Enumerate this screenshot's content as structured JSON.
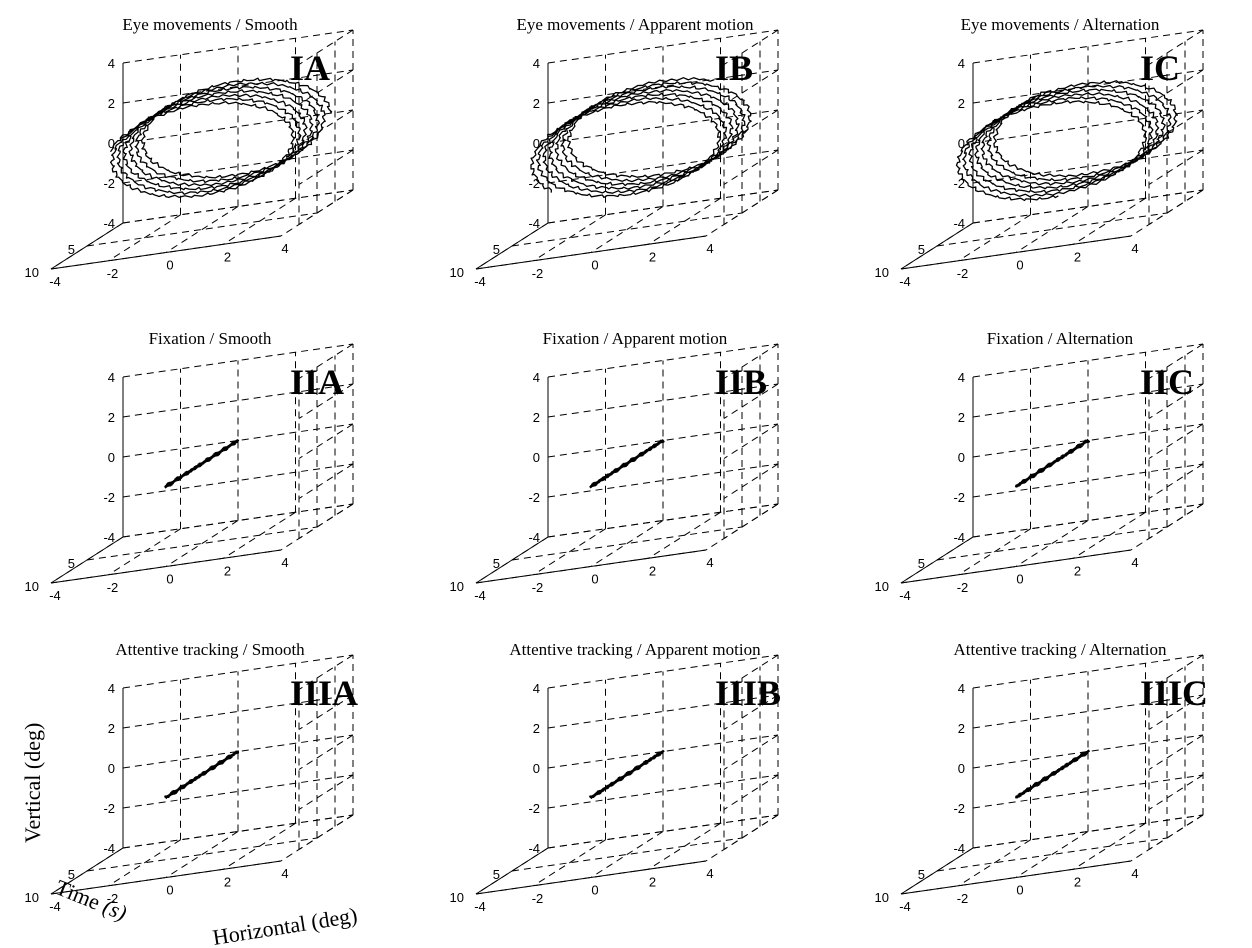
{
  "chart_data": [
    {
      "id": "IA",
      "type": "line3d",
      "title": "Eye movements / Smooth",
      "row": 0,
      "col": 0,
      "pattern": "loops",
      "xlim": [
        -4,
        4
      ],
      "ylim": [
        -4,
        4
      ],
      "tlim": [
        0,
        10
      ],
      "xticks": [
        -4,
        -2,
        0,
        2,
        4
      ],
      "yticks": [
        -4,
        -2,
        0,
        2,
        4
      ],
      "tticks": [
        5,
        10
      ]
    },
    {
      "id": "IB",
      "type": "line3d",
      "title": "Eye movements / Apparent motion",
      "row": 0,
      "col": 1,
      "pattern": "loops",
      "xlim": [
        -4,
        4
      ],
      "ylim": [
        -4,
        4
      ],
      "tlim": [
        0,
        10
      ],
      "xticks": [
        -4,
        -2,
        0,
        2,
        4
      ],
      "yticks": [
        -4,
        -2,
        0,
        2,
        4
      ],
      "tticks": [
        5,
        10
      ]
    },
    {
      "id": "IC",
      "type": "line3d",
      "title": "Eye movements / Alternation",
      "row": 0,
      "col": 2,
      "pattern": "loops",
      "xlim": [
        -4,
        4
      ],
      "ylim": [
        -4,
        4
      ],
      "tlim": [
        0,
        10
      ],
      "xticks": [
        -4,
        -2,
        0,
        2,
        4
      ],
      "yticks": [
        -4,
        -2,
        0,
        2,
        4
      ],
      "tticks": [
        5,
        10
      ]
    },
    {
      "id": "IIA",
      "type": "line3d",
      "title": "Fixation / Smooth",
      "row": 1,
      "col": 0,
      "pattern": "flat",
      "xlim": [
        -4,
        4
      ],
      "ylim": [
        -4,
        4
      ],
      "tlim": [
        0,
        10
      ],
      "xticks": [
        -4,
        -2,
        0,
        2,
        4
      ],
      "yticks": [
        -4,
        -2,
        0,
        2,
        4
      ],
      "tticks": [
        5,
        10
      ]
    },
    {
      "id": "IIB",
      "type": "line3d",
      "title": "Fixation / Apparent motion",
      "row": 1,
      "col": 1,
      "pattern": "flat",
      "xlim": [
        -4,
        4
      ],
      "ylim": [
        -4,
        4
      ],
      "tlim": [
        0,
        10
      ],
      "xticks": [
        -4,
        -2,
        0,
        2,
        4
      ],
      "yticks": [
        -4,
        -2,
        0,
        2,
        4
      ],
      "tticks": [
        5,
        10
      ]
    },
    {
      "id": "IIC",
      "type": "line3d",
      "title": "Fixation / Alternation",
      "row": 1,
      "col": 2,
      "pattern": "flat",
      "xlim": [
        -4,
        4
      ],
      "ylim": [
        -4,
        4
      ],
      "tlim": [
        0,
        10
      ],
      "xticks": [
        -4,
        -2,
        0,
        2,
        4
      ],
      "yticks": [
        -4,
        -2,
        0,
        2,
        4
      ],
      "tticks": [
        5,
        10
      ]
    },
    {
      "id": "IIIA",
      "type": "line3d",
      "title": "Attentive tracking / Smooth",
      "row": 2,
      "col": 0,
      "pattern": "flat",
      "xlim": [
        -4,
        4
      ],
      "ylim": [
        -4,
        4
      ],
      "tlim": [
        0,
        10
      ],
      "xticks": [
        -4,
        -2,
        0,
        2,
        4
      ],
      "yticks": [
        -4,
        -2,
        0,
        2,
        4
      ],
      "tticks": [
        5,
        10
      ]
    },
    {
      "id": "IIIB",
      "type": "line3d",
      "title": "Attentive tracking / Apparent motion",
      "row": 2,
      "col": 1,
      "pattern": "flat",
      "xlim": [
        -4,
        4
      ],
      "ylim": [
        -4,
        4
      ],
      "tlim": [
        0,
        10
      ],
      "xticks": [
        -4,
        -2,
        0,
        2,
        4
      ],
      "yticks": [
        -4,
        -2,
        0,
        2,
        4
      ],
      "tticks": [
        5,
        10
      ]
    },
    {
      "id": "IIIC",
      "type": "line3d",
      "title": "Attentive tracking / Alternation",
      "row": 2,
      "col": 2,
      "pattern": "flat",
      "xlim": [
        -4,
        4
      ],
      "ylim": [
        -4,
        4
      ],
      "tlim": [
        0,
        10
      ],
      "xticks": [
        -4,
        -2,
        0,
        2,
        4
      ],
      "yticks": [
        -4,
        -2,
        0,
        2,
        4
      ],
      "tticks": [
        5,
        10
      ]
    }
  ],
  "axis_labels": {
    "vertical": "Vertical (deg)",
    "time_prefix": "Time",
    "time_unit": "(s)",
    "horizontal": "Horizontal (deg)"
  }
}
